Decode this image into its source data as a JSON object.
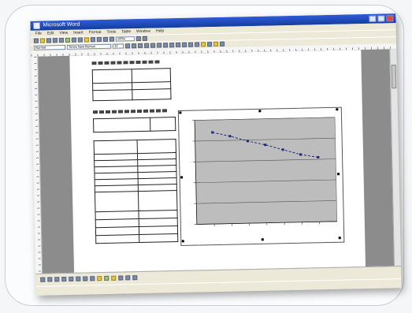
{
  "window": {
    "title": "Microsoft Word"
  },
  "menu": [
    "File",
    "Edit",
    "View",
    "Insert",
    "Format",
    "Tools",
    "Table",
    "Window",
    "Help"
  ],
  "toolbar": {
    "zoom": "100%",
    "style": "Normal",
    "font": "Times New Roman",
    "size": "12"
  },
  "chart_data": {
    "type": "line",
    "title": "",
    "xlabel": "",
    "ylabel": "",
    "x": [
      1,
      2,
      3,
      4,
      5,
      6,
      7
    ],
    "series": [
      {
        "values": [
          88,
          84,
          79,
          75,
          70,
          65,
          62
        ]
      }
    ],
    "ylim": [
      0,
      100
    ],
    "grid": true,
    "plot_background": "#bdbdbd",
    "line_color": "#1c2a7a"
  },
  "statusbar": {
    "text": ""
  },
  "colors": {
    "titlebar": "#1f4cc8",
    "workarea": "#8c8c8c"
  }
}
